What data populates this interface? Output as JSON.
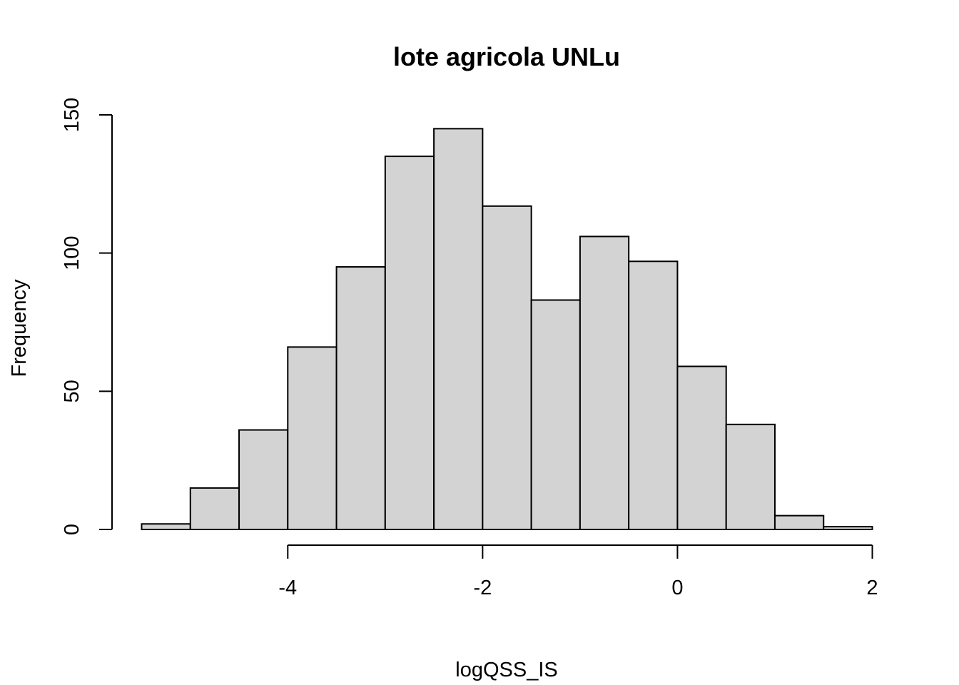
{
  "chart_data": {
    "type": "bar",
    "title": "lote agricola UNLu",
    "xlabel": "logQSS_IS",
    "ylabel": "Frequency",
    "bins": [
      {
        "x0": -5.5,
        "x1": -5.0,
        "count": 2
      },
      {
        "x0": -5.0,
        "x1": -4.5,
        "count": 15
      },
      {
        "x0": -4.5,
        "x1": -4.0,
        "count": 36
      },
      {
        "x0": -4.0,
        "x1": -3.5,
        "count": 66
      },
      {
        "x0": -3.5,
        "x1": -3.0,
        "count": 95
      },
      {
        "x0": -3.0,
        "x1": -2.5,
        "count": 135
      },
      {
        "x0": -2.5,
        "x1": -2.0,
        "count": 145
      },
      {
        "x0": -2.0,
        "x1": -1.5,
        "count": 117
      },
      {
        "x0": -1.5,
        "x1": -1.0,
        "count": 83
      },
      {
        "x0": -1.0,
        "x1": -0.5,
        "count": 106
      },
      {
        "x0": -0.5,
        "x1": 0.0,
        "count": 97
      },
      {
        "x0": 0.0,
        "x1": 0.5,
        "count": 59
      },
      {
        "x0": 0.5,
        "x1": 1.0,
        "count": 38
      },
      {
        "x0": 1.0,
        "x1": 1.5,
        "count": 5
      },
      {
        "x0": 1.5,
        "x1": 2.0,
        "count": 1
      }
    ],
    "xlim": [
      -5.5,
      2.0
    ],
    "ylim": [
      0,
      150
    ],
    "xticks": [
      -4,
      -2,
      0,
      2
    ],
    "xtick_labels": [
      "-4",
      "-2",
      "0",
      "2"
    ],
    "yticks": [
      0,
      50,
      100,
      150
    ],
    "ytick_labels": [
      "0",
      "50",
      "100",
      "150"
    ],
    "grid": false,
    "bar_color": "#d3d3d3",
    "edge_color": "#000000"
  }
}
